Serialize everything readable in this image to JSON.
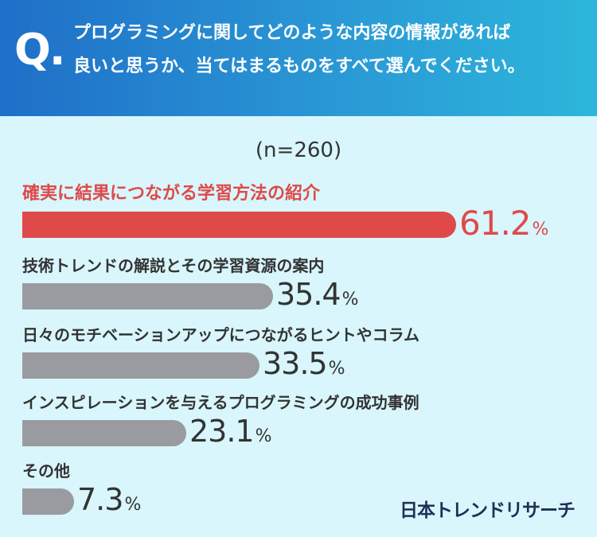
{
  "question": {
    "mark": "Q.",
    "line1": "プログラミングに関してどのような内容の情報があれば",
    "line2": "良いと思うか、当てはまるものをすべて選んでください。"
  },
  "sample_size": "(n=260)",
  "brand": "日本トレンドリサーチ",
  "colors": {
    "highlight": "#e04949",
    "bar": "#9a9ba0",
    "background": "#d8f6fb",
    "header": "#1f6fc8"
  },
  "chart_data": {
    "type": "bar",
    "orientation": "horizontal",
    "title": "",
    "xlim": [
      0,
      100
    ],
    "unit": "%",
    "categories": [
      "確実に結果につながる学習方法の紹介",
      "技術トレンドの解説とその学習資源の案内",
      "日々のモチベーションアップにつながるヒントやコラム",
      "インスピレーションを与えるプログラミングの成功事例",
      "その他"
    ],
    "values": [
      61.2,
      35.4,
      33.5,
      23.1,
      7.3
    ],
    "value_labels": [
      "61.2",
      "35.4",
      "33.5",
      "23.1",
      "7.3"
    ],
    "highlight_index": 0
  }
}
